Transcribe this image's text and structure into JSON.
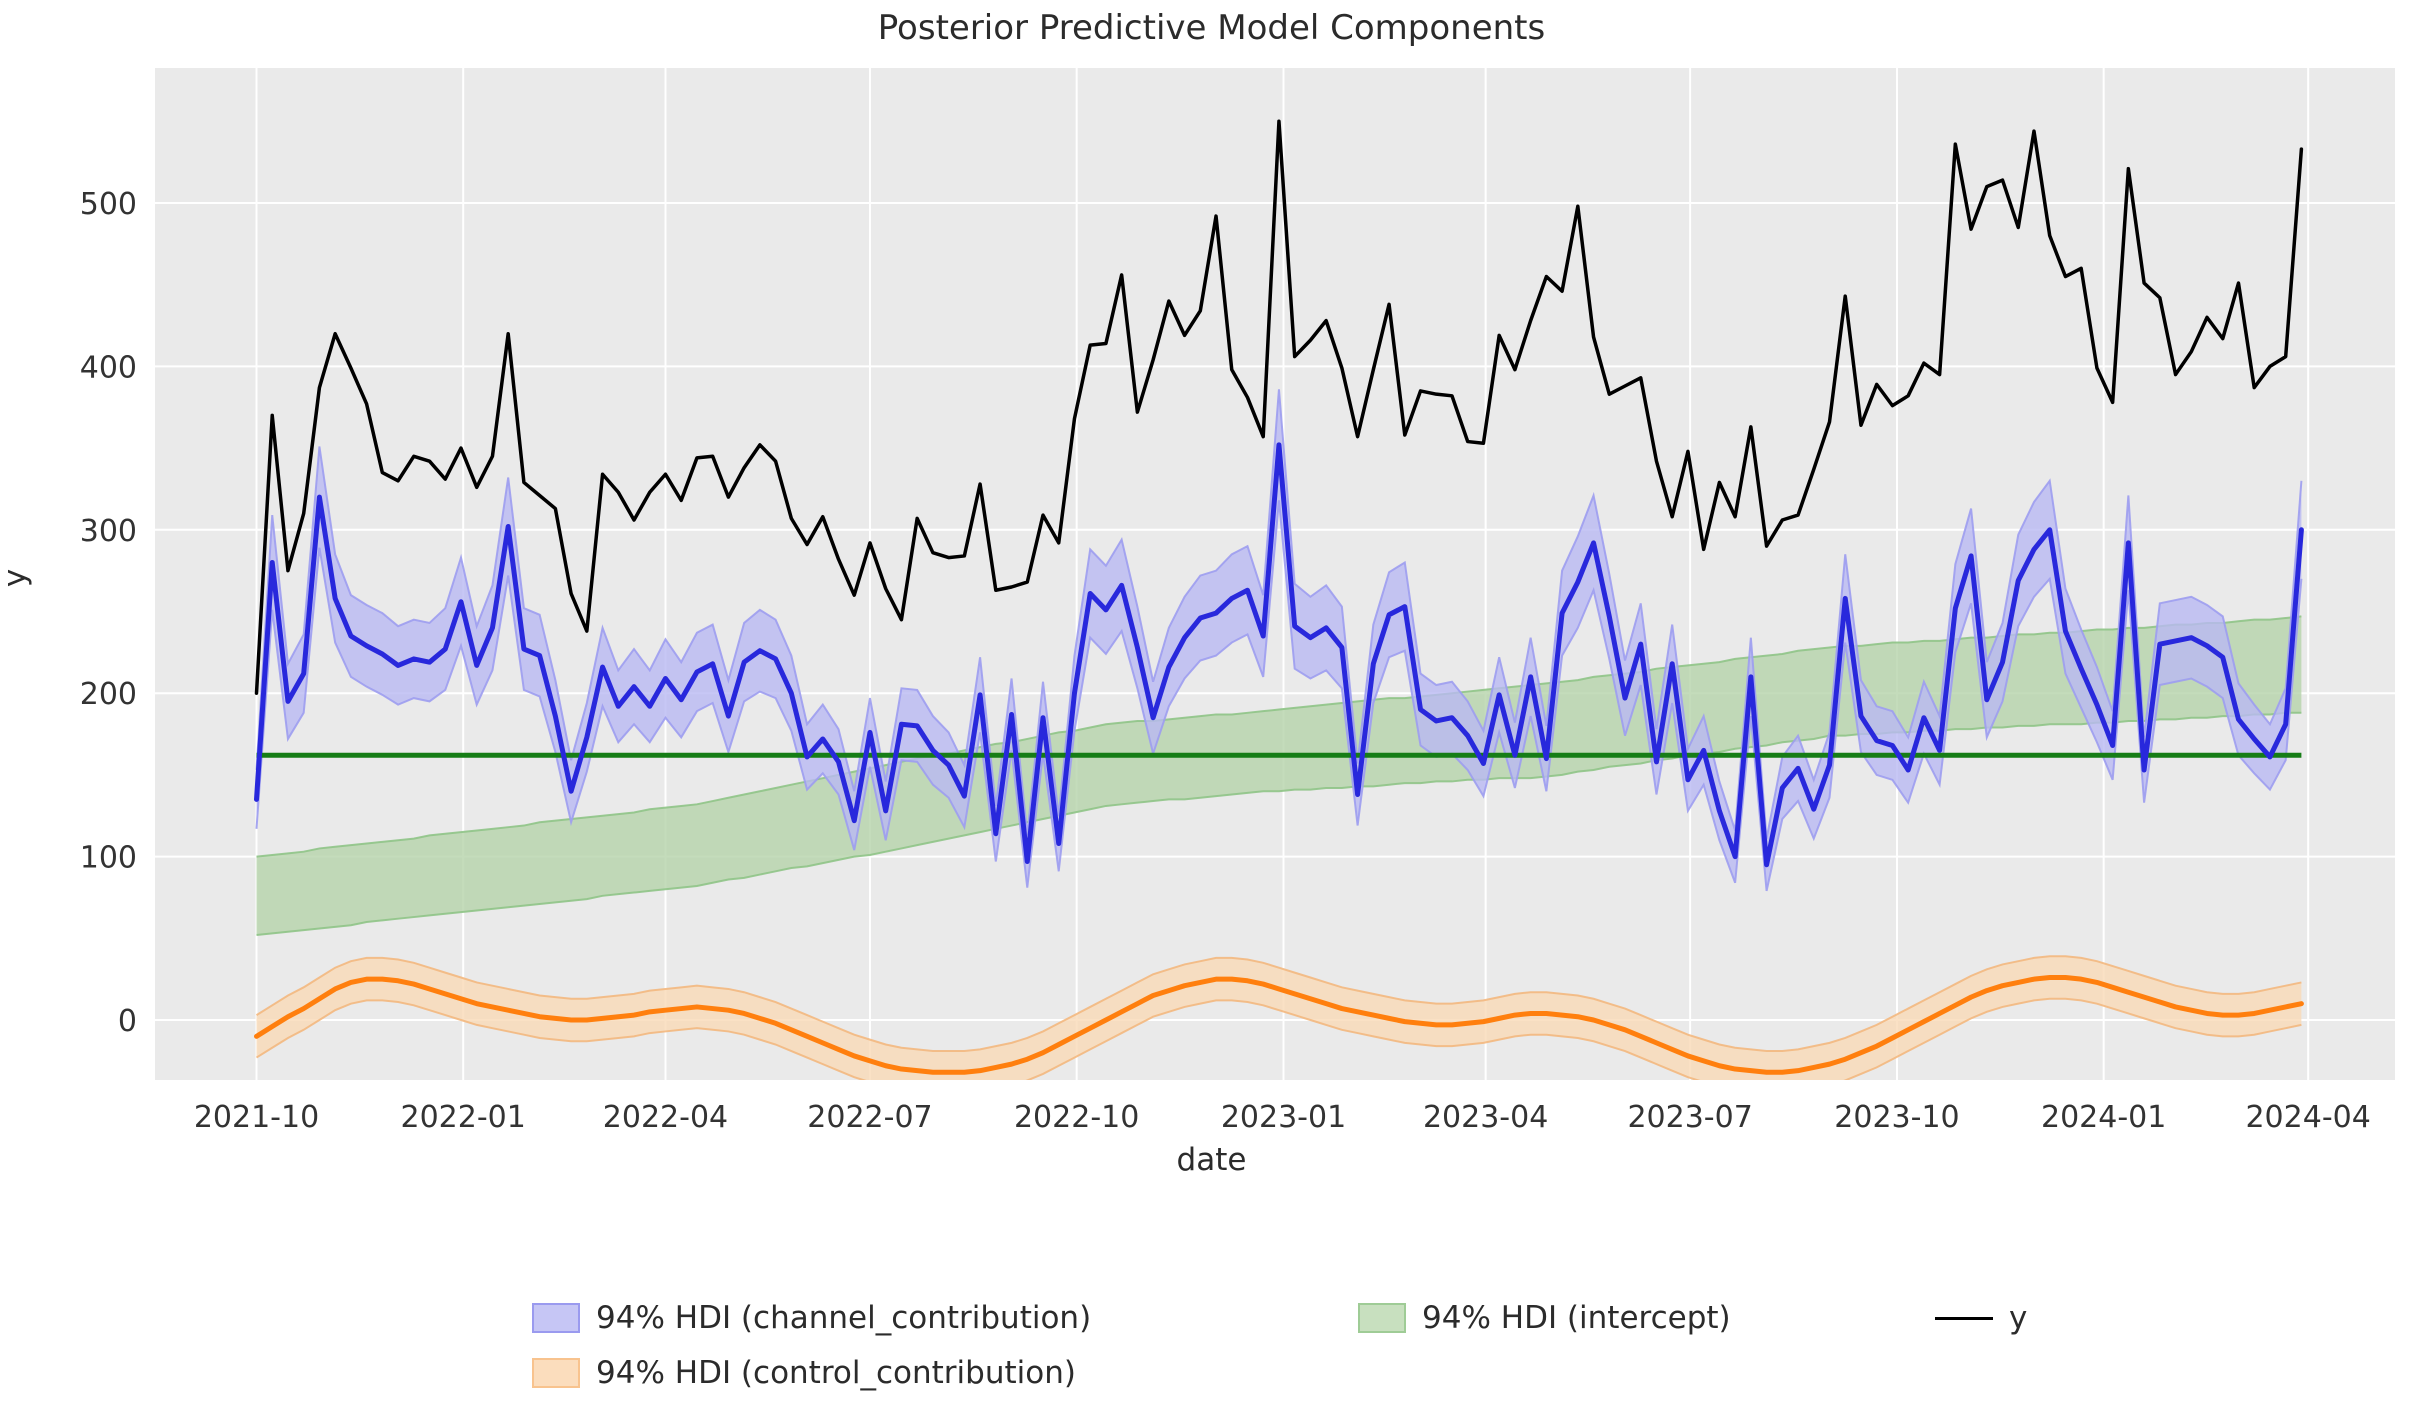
{
  "chart_data": {
    "type": "line",
    "title": "Posterior Predictive Model Components",
    "xlabel": "date",
    "ylabel": "y",
    "grid": true,
    "legend_position": "lower center",
    "x_axis": {
      "start_date": "2021-10-01",
      "step_days": 7,
      "end_date": "2024-03-29",
      "n_points": 131,
      "tick_labels": [
        "2021-10",
        "2022-01",
        "2022-04",
        "2022-07",
        "2022-10",
        "2023-01",
        "2023-04",
        "2023-07",
        "2023-10",
        "2024-01",
        "2024-04"
      ],
      "tick_weeks": [
        0,
        13.14,
        26.0,
        39.0,
        52.14,
        65.29,
        78.14,
        91.14,
        104.29,
        117.43,
        130.43
      ]
    },
    "y_axis": {
      "ticks": [
        0,
        100,
        200,
        300,
        400,
        500
      ],
      "tick_labels": [
        "0",
        "100",
        "200",
        "300",
        "400",
        "500"
      ],
      "ylim": [
        -37,
        583
      ]
    },
    "series": {
      "y_observed": [
        200,
        370,
        275,
        310,
        387,
        420,
        399,
        377,
        335,
        330,
        345,
        342,
        331,
        350,
        326,
        345,
        420,
        329,
        321,
        313,
        261,
        238,
        334,
        323,
        306,
        323,
        334,
        318,
        344,
        345,
        320,
        338,
        352,
        342,
        307,
        291,
        308,
        282,
        260,
        292,
        264,
        245,
        307,
        286,
        283,
        284,
        328,
        263,
        265,
        268,
        309,
        292,
        368,
        413,
        414,
        456,
        372,
        404,
        440,
        419,
        434,
        492,
        398,
        381,
        357,
        550,
        406,
        416,
        428,
        399,
        357,
        398,
        438,
        358,
        385,
        383,
        382,
        354,
        353,
        419,
        398,
        428,
        455,
        446,
        498,
        418,
        383,
        388,
        393,
        342,
        308,
        348,
        288,
        329,
        308,
        363,
        290,
        306,
        309,
        337,
        366,
        443,
        364,
        389,
        376,
        382,
        402,
        395,
        536,
        484,
        510,
        514,
        485,
        544,
        480,
        455,
        460,
        399,
        378,
        521,
        451,
        442,
        395,
        409,
        430,
        417,
        451,
        387,
        400,
        406,
        533
      ],
      "channel_contribution_mean": [
        135,
        280,
        195,
        212,
        320,
        258,
        235,
        229,
        224,
        217,
        221,
        219,
        227,
        256,
        217,
        240,
        302,
        227,
        223,
        186,
        140,
        173,
        216,
        192,
        204,
        192,
        209,
        196,
        213,
        218,
        186,
        219,
        226,
        221,
        200,
        161,
        172,
        158,
        122,
        176,
        128,
        181,
        180,
        165,
        156,
        137,
        199,
        114,
        187,
        97,
        185,
        108,
        200,
        261,
        251,
        266,
        228,
        185,
        216,
        234,
        246,
        249,
        258,
        263,
        235,
        352,
        241,
        234,
        240,
        228,
        138,
        218,
        248,
        253,
        190,
        183,
        185,
        174,
        157,
        199,
        162,
        210,
        160,
        249,
        268,
        292,
        247,
        197,
        230,
        158,
        218,
        147,
        165,
        128,
        100,
        210,
        95,
        142,
        154,
        129,
        156,
        258,
        186,
        171,
        168,
        153,
        185,
        165,
        252,
        284,
        196,
        219,
        269,
        288,
        300,
        238,
        215,
        193,
        168,
        292,
        153,
        230,
        232,
        234,
        229,
        222,
        184,
        172,
        161,
        181,
        300
      ],
      "channel_contribution_hdi_low": [
        117,
        251,
        172,
        188,
        289,
        231,
        210,
        204,
        199,
        193,
        197,
        195,
        202,
        229,
        193,
        214,
        272,
        202,
        198,
        164,
        121,
        152,
        192,
        170,
        181,
        170,
        185,
        173,
        189,
        194,
        164,
        195,
        201,
        197,
        177,
        141,
        151,
        138,
        104,
        155,
        110,
        159,
        158,
        144,
        136,
        118,
        176,
        97,
        165,
        81,
        163,
        91,
        177,
        234,
        224,
        238,
        203,
        163,
        192,
        209,
        220,
        223,
        231,
        236,
        210,
        318,
        215,
        209,
        214,
        203,
        119,
        194,
        222,
        226,
        168,
        161,
        163,
        153,
        137,
        176,
        142,
        186,
        140,
        223,
        240,
        263,
        221,
        174,
        205,
        138,
        194,
        128,
        144,
        110,
        84,
        186,
        79,
        123,
        134,
        111,
        136,
        231,
        164,
        150,
        147,
        133,
        163,
        144,
        225,
        255,
        173,
        195,
        241,
        259,
        270,
        212,
        191,
        170,
        147,
        263,
        133,
        205,
        207,
        209,
        204,
        197,
        162,
        151,
        141,
        159,
        270
      ],
      "channel_contribution_hdi_high": [
        153,
        309,
        218,
        236,
        351,
        285,
        260,
        254,
        249,
        241,
        245,
        243,
        252,
        283,
        241,
        266,
        332,
        252,
        248,
        208,
        159,
        194,
        240,
        214,
        227,
        214,
        233,
        219,
        237,
        242,
        208,
        243,
        251,
        245,
        223,
        181,
        193,
        178,
        140,
        197,
        146,
        203,
        202,
        186,
        176,
        156,
        222,
        131,
        209,
        113,
        207,
        125,
        223,
        288,
        278,
        294,
        253,
        207,
        240,
        259,
        272,
        275,
        285,
        290,
        260,
        386,
        267,
        259,
        266,
        253,
        157,
        242,
        274,
        280,
        212,
        205,
        207,
        195,
        177,
        222,
        182,
        234,
        180,
        275,
        296,
        321,
        273,
        220,
        255,
        178,
        242,
        166,
        186,
        146,
        116,
        234,
        111,
        161,
        174,
        147,
        176,
        285,
        208,
        192,
        189,
        173,
        207,
        186,
        279,
        313,
        219,
        243,
        297,
        317,
        330,
        264,
        239,
        216,
        189,
        321,
        173,
        255,
        257,
        259,
        254,
        247,
        206,
        193,
        181,
        203,
        330
      ],
      "intercept_mean_line": 162,
      "intercept_hdi_low": [
        52,
        53,
        54,
        55,
        56,
        57,
        58,
        60,
        61,
        62,
        63,
        64,
        65,
        66,
        67,
        68,
        69,
        70,
        71,
        72,
        73,
        74,
        76,
        77,
        78,
        79,
        80,
        81,
        82,
        84,
        86,
        87,
        89,
        91,
        93,
        94,
        96,
        98,
        100,
        101,
        103,
        105,
        107,
        109,
        111,
        113,
        115,
        117,
        119,
        121,
        123,
        125,
        127,
        129,
        131,
        132,
        133,
        134,
        135,
        135,
        136,
        137,
        138,
        139,
        140,
        140,
        141,
        141,
        142,
        142,
        143,
        143,
        144,
        145,
        145,
        146,
        146,
        147,
        147,
        148,
        148,
        148,
        149,
        150,
        152,
        153,
        155,
        156,
        157,
        159,
        160,
        162,
        163,
        164,
        166,
        167,
        168,
        170,
        171,
        172,
        174,
        174,
        175,
        175,
        176,
        176,
        177,
        177,
        178,
        178,
        179,
        179,
        180,
        180,
        181,
        181,
        181,
        182,
        182,
        183,
        183,
        184,
        184,
        185,
        185,
        186,
        186,
        187,
        187,
        188,
        188
      ],
      "intercept_hdi_high": [
        100,
        101,
        102,
        103,
        105,
        106,
        107,
        108,
        109,
        110,
        111,
        113,
        114,
        115,
        116,
        117,
        118,
        119,
        121,
        122,
        123,
        124,
        125,
        126,
        127,
        129,
        130,
        131,
        132,
        134,
        136,
        138,
        140,
        142,
        144,
        146,
        148,
        150,
        152,
        154,
        156,
        158,
        160,
        162,
        163,
        165,
        167,
        169,
        170,
        172,
        174,
        176,
        177,
        179,
        181,
        182,
        183,
        183,
        184,
        185,
        186,
        187,
        187,
        188,
        189,
        190,
        191,
        192,
        193,
        194,
        195,
        196,
        197,
        197,
        198,
        199,
        200,
        201,
        202,
        203,
        204,
        205,
        206,
        207,
        208,
        210,
        211,
        212,
        213,
        215,
        216,
        217,
        218,
        219,
        221,
        222,
        223,
        224,
        226,
        227,
        228,
        229,
        229,
        230,
        231,
        231,
        232,
        232,
        233,
        234,
        234,
        235,
        236,
        236,
        237,
        237,
        238,
        239,
        239,
        240,
        240,
        241,
        242,
        242,
        243,
        243,
        244,
        245,
        245,
        246,
        247
      ],
      "control_contribution_mean": [
        -10,
        -4,
        2,
        7,
        13,
        19,
        23,
        25,
        25,
        24,
        22,
        19,
        16,
        13,
        10,
        8,
        6,
        4,
        2,
        1,
        0,
        0,
        1,
        2,
        3,
        5,
        6,
        7,
        8,
        7,
        6,
        4,
        1,
        -2,
        -6,
        -10,
        -14,
        -18,
        -22,
        -25,
        -28,
        -30,
        -31,
        -32,
        -32,
        -32,
        -31,
        -29,
        -27,
        -24,
        -20,
        -15,
        -10,
        -5,
        0,
        5,
        10,
        15,
        18,
        21,
        23,
        25,
        25,
        24,
        22,
        19,
        16,
        13,
        10,
        7,
        5,
        3,
        1,
        -1,
        -2,
        -3,
        -3,
        -2,
        -1,
        1,
        3,
        4,
        4,
        3,
        2,
        0,
        -3,
        -6,
        -10,
        -14,
        -18,
        -22,
        -25,
        -28,
        -30,
        -31,
        -32,
        -32,
        -31,
        -29,
        -27,
        -24,
        -20,
        -16,
        -11,
        -6,
        -1,
        4,
        9,
        14,
        18,
        21,
        23,
        25,
        26,
        26,
        25,
        23,
        20,
        17,
        14,
        11,
        8,
        6,
        4,
        3,
        3,
        4,
        6,
        8,
        10
      ],
      "control_contribution_hdi_low": [
        -23,
        -17,
        -11,
        -6,
        0,
        6,
        10,
        12,
        12,
        11,
        9,
        6,
        3,
        0,
        -3,
        -5,
        -7,
        -9,
        -11,
        -12,
        -13,
        -13,
        -12,
        -11,
        -10,
        -8,
        -7,
        -6,
        -5,
        -6,
        -7,
        -9,
        -12,
        -15,
        -19,
        -23,
        -27,
        -31,
        -35,
        -38,
        -41,
        -43,
        -44,
        -45,
        -45,
        -45,
        -44,
        -42,
        -40,
        -37,
        -33,
        -28,
        -23,
        -18,
        -13,
        -8,
        -3,
        2,
        5,
        8,
        10,
        12,
        12,
        11,
        9,
        6,
        3,
        0,
        -3,
        -6,
        -8,
        -10,
        -12,
        -14,
        -15,
        -16,
        -16,
        -15,
        -14,
        -12,
        -10,
        -9,
        -9,
        -10,
        -11,
        -13,
        -16,
        -19,
        -23,
        -27,
        -31,
        -35,
        -38,
        -41,
        -43,
        -44,
        -45,
        -45,
        -44,
        -42,
        -40,
        -37,
        -33,
        -29,
        -24,
        -19,
        -14,
        -9,
        -4,
        1,
        5,
        8,
        10,
        12,
        13,
        13,
        12,
        10,
        7,
        4,
        1,
        -2,
        -5,
        -7,
        -9,
        -10,
        -10,
        -9,
        -7,
        -5,
        -3
      ],
      "control_contribution_hdi_high": [
        3,
        9,
        15,
        20,
        26,
        32,
        36,
        38,
        38,
        37,
        35,
        32,
        29,
        26,
        23,
        21,
        19,
        17,
        15,
        14,
        13,
        13,
        14,
        15,
        16,
        18,
        19,
        20,
        21,
        20,
        19,
        17,
        14,
        11,
        7,
        3,
        -1,
        -5,
        -9,
        -12,
        -15,
        -17,
        -18,
        -19,
        -19,
        -19,
        -18,
        -16,
        -14,
        -11,
        -7,
        -2,
        3,
        8,
        13,
        18,
        23,
        28,
        31,
        34,
        36,
        38,
        38,
        37,
        35,
        32,
        29,
        26,
        23,
        20,
        18,
        16,
        14,
        12,
        11,
        10,
        10,
        11,
        12,
        14,
        16,
        17,
        17,
        16,
        15,
        13,
        10,
        7,
        3,
        -1,
        -5,
        -9,
        -12,
        -15,
        -17,
        -18,
        -19,
        -19,
        -18,
        -16,
        -14,
        -11,
        -7,
        -3,
        2,
        7,
        12,
        17,
        22,
        27,
        31,
        34,
        36,
        38,
        39,
        39,
        38,
        36,
        33,
        30,
        27,
        24,
        21,
        19,
        17,
        16,
        16,
        17,
        19,
        21,
        23
      ]
    },
    "legend": [
      {
        "label": "94% HDI (channel_contribution)",
        "type": "patch",
        "fill": "#c6c6f5",
        "edge": "#9a9aef"
      },
      {
        "label": "94% HDI (intercept)",
        "type": "patch",
        "fill": "#c8e0bf",
        "edge": "#9fcc96"
      },
      {
        "label": "y",
        "type": "line",
        "color": "#000000"
      },
      {
        "label": "94% HDI (control_contribution)",
        "type": "patch",
        "fill": "#fbddbd",
        "edge": "#f8c38e"
      }
    ],
    "colors": {
      "plot_bg": "#eaeaea",
      "gridline": "#ffffff",
      "y_line": "#000000",
      "channel_line": "#2828dc",
      "channel_band": "#b9b9f3",
      "channel_band_edge": "#9d9df0",
      "intercept_line": "#167d16",
      "intercept_band": "#b5d3aa",
      "intercept_band_edge": "#8fc487",
      "control_line": "#ff7f0e",
      "control_band": "#f9d9b7",
      "control_band_edge": "#f3b880",
      "text": "#2b2b2b",
      "tick_text": "#333333"
    }
  }
}
